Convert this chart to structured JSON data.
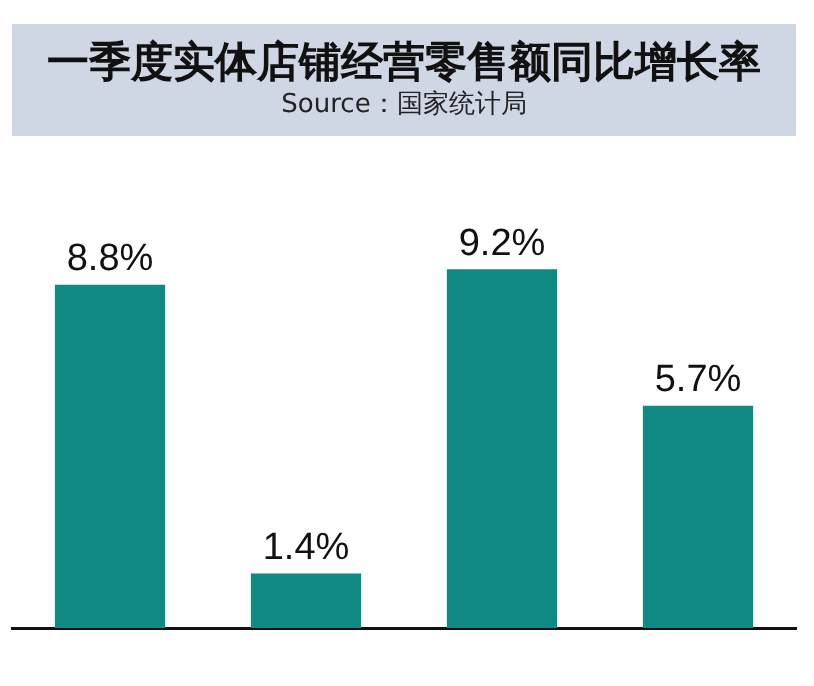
{
  "chart_data": {
    "type": "bar",
    "title": "一季度实体店铺经营零售额同比增长率",
    "subtitle": "Source：国家统计局",
    "categories": [
      null,
      null,
      null,
      null
    ],
    "values": [
      8.8,
      1.4,
      9.2,
      5.7
    ],
    "value_labels": [
      "8.8%",
      "1.4%",
      "9.2%",
      "5.7%"
    ],
    "color": "#0f8a82",
    "grid": false,
    "legend": false
  }
}
